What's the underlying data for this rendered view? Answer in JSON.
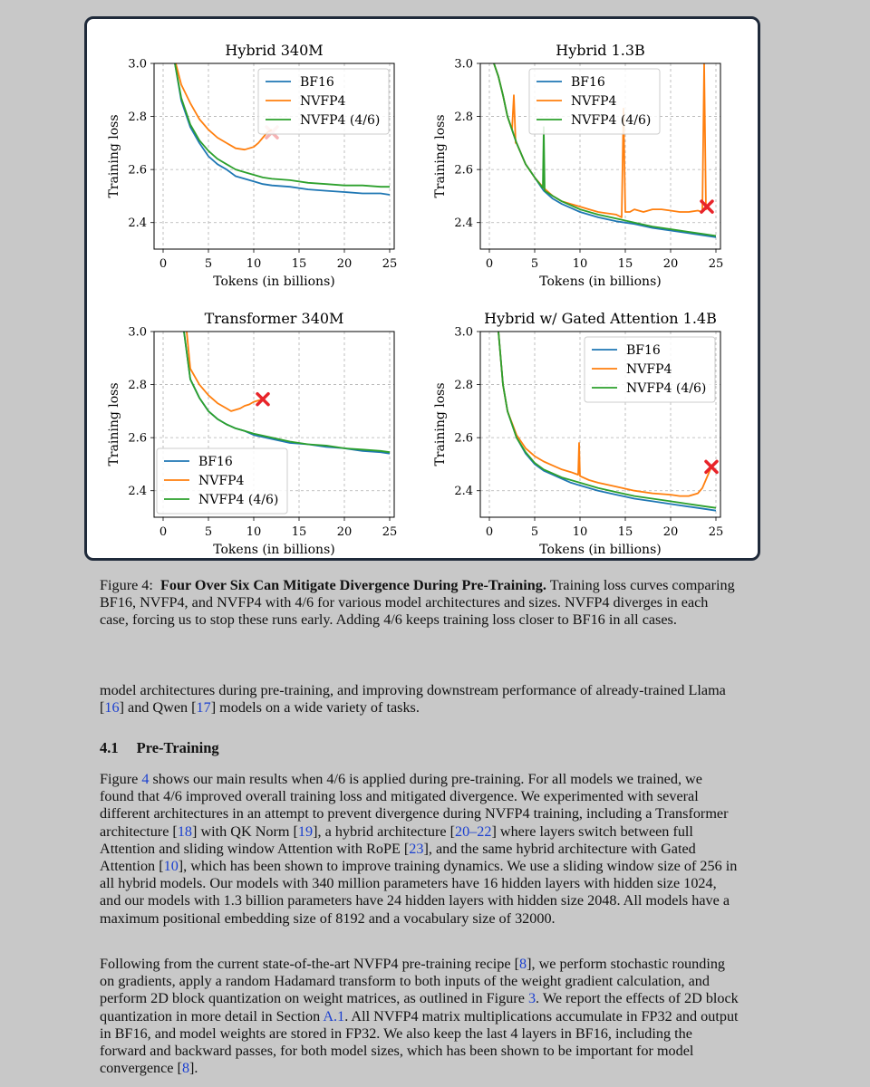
{
  "chart_data": [
    {
      "type": "line",
      "title": "Hybrid 340M",
      "xlabel": "Tokens (in billions)",
      "ylabel": "Training loss",
      "xlim": [
        -1,
        25.5
      ],
      "ylim": [
        2.3,
        3.0
      ],
      "xticks": [
        0,
        5,
        10,
        15,
        20,
        25
      ],
      "yticks": [
        2.4,
        2.6,
        2.8,
        3.0
      ],
      "grid": true,
      "legend": "top-right",
      "divergence_marker": {
        "x": 12.0,
        "y": 2.74,
        "faded": true
      },
      "series": [
        {
          "name": "BF16",
          "color": "#1f77b4",
          "x": [
            1.3,
            2,
            3,
            4,
            5,
            6,
            7,
            8,
            9,
            10,
            11,
            12,
            14,
            16,
            18,
            20,
            22,
            24,
            25
          ],
          "y": [
            3.0,
            2.86,
            2.76,
            2.7,
            2.65,
            2.62,
            2.6,
            2.575,
            2.565,
            2.555,
            2.545,
            2.54,
            2.535,
            2.525,
            2.52,
            2.515,
            2.51,
            2.51,
            2.505
          ]
        },
        {
          "name": "NVFP4",
          "color": "#ff7f0e",
          "x": [
            1.4,
            2,
            3,
            4,
            5,
            6,
            7,
            8,
            9,
            9.5,
            10,
            10.5,
            11,
            11.5,
            12
          ],
          "y": [
            3.0,
            2.92,
            2.85,
            2.79,
            2.75,
            2.72,
            2.7,
            2.68,
            2.675,
            2.68,
            2.685,
            2.7,
            2.72,
            2.74,
            2.75
          ]
        },
        {
          "name": "NVFP4 (4/6)",
          "color": "#2ca02c",
          "x": [
            1.3,
            2,
            3,
            4,
            5,
            6,
            7,
            8,
            9,
            10,
            11,
            12,
            14,
            16,
            18,
            20,
            22,
            24,
            25
          ],
          "y": [
            3.0,
            2.87,
            2.77,
            2.71,
            2.67,
            2.64,
            2.62,
            2.6,
            2.59,
            2.58,
            2.57,
            2.565,
            2.56,
            2.55,
            2.545,
            2.54,
            2.54,
            2.535,
            2.535
          ]
        }
      ]
    },
    {
      "type": "line",
      "title": "Hybrid 1.3B",
      "xlabel": "Tokens (in billions)",
      "ylabel": "Training loss",
      "xlim": [
        -1,
        25.5
      ],
      "ylim": [
        2.3,
        3.0
      ],
      "xticks": [
        0,
        5,
        10,
        15,
        20,
        25
      ],
      "yticks": [
        2.4,
        2.6,
        2.8,
        3.0
      ],
      "grid": true,
      "legend": "top-left",
      "divergence_marker": {
        "x": 24.0,
        "y": 2.46,
        "faded": false
      },
      "series": [
        {
          "name": "BF16",
          "color": "#1f77b4",
          "x": [
            0.5,
            1,
            1.5,
            2,
            3,
            4,
            5,
            6,
            7,
            8,
            9,
            10,
            12,
            14,
            16,
            18,
            20,
            22,
            24,
            25
          ],
          "y": [
            3.0,
            2.95,
            2.88,
            2.8,
            2.7,
            2.62,
            2.57,
            2.52,
            2.49,
            2.47,
            2.455,
            2.44,
            2.42,
            2.405,
            2.395,
            2.38,
            2.37,
            2.36,
            2.35,
            2.345
          ]
        },
        {
          "name": "NVFP4",
          "color": "#ff7f0e",
          "x": [
            0.5,
            1,
            1.5,
            2,
            2.5,
            2.7,
            2.9,
            3,
            4,
            5,
            6,
            7,
            8,
            9,
            10,
            11,
            12,
            13,
            14,
            14.6,
            14.8,
            15,
            15.5,
            16,
            17,
            18,
            19,
            20,
            21,
            22,
            23,
            23.5,
            23.7,
            23.9,
            24.2
          ],
          "y": [
            3.0,
            2.95,
            2.88,
            2.8,
            2.75,
            2.88,
            2.7,
            2.7,
            2.62,
            2.57,
            2.53,
            2.5,
            2.48,
            2.47,
            2.46,
            2.45,
            2.44,
            2.435,
            2.43,
            2.42,
            2.83,
            2.44,
            2.44,
            2.45,
            2.44,
            2.45,
            2.45,
            2.445,
            2.44,
            2.44,
            2.445,
            2.44,
            3.0,
            2.45,
            2.46
          ]
        },
        {
          "name": "NVFP4 (4/6)",
          "color": "#2ca02c",
          "x": [
            0.5,
            1,
            1.5,
            2,
            3,
            4,
            5,
            5.9,
            6.0,
            6.1,
            7,
            8,
            9,
            10,
            12,
            14,
            16,
            18,
            20,
            22,
            24,
            25
          ],
          "y": [
            3.0,
            2.95,
            2.88,
            2.8,
            2.7,
            2.62,
            2.57,
            2.53,
            2.76,
            2.52,
            2.5,
            2.48,
            2.465,
            2.45,
            2.43,
            2.415,
            2.4,
            2.385,
            2.375,
            2.365,
            2.355,
            2.35
          ]
        }
      ]
    },
    {
      "type": "line",
      "title": "Transformer 340M",
      "xlabel": "Tokens (in billions)",
      "ylabel": "Training loss",
      "xlim": [
        -1,
        25.5
      ],
      "ylim": [
        2.3,
        3.0
      ],
      "xticks": [
        0,
        5,
        10,
        15,
        20,
        25
      ],
      "yticks": [
        2.4,
        2.6,
        2.8,
        3.0
      ],
      "grid": true,
      "legend": "bottom-left",
      "divergence_marker": {
        "x": 11.0,
        "y": 2.745,
        "faded": false
      },
      "series": [
        {
          "name": "BF16",
          "color": "#1f77b4",
          "x": [
            2.3,
            3,
            4,
            5,
            6,
            7,
            8,
            9,
            10,
            12,
            14,
            16,
            18,
            20,
            22,
            24,
            25
          ],
          "y": [
            3.0,
            2.82,
            2.75,
            2.7,
            2.67,
            2.65,
            2.635,
            2.625,
            2.61,
            2.595,
            2.58,
            2.575,
            2.565,
            2.56,
            2.55,
            2.545,
            2.54
          ]
        },
        {
          "name": "NVFP4",
          "color": "#ff7f0e",
          "x": [
            2.6,
            3,
            4,
            5,
            6,
            7,
            7.5,
            8,
            8.5,
            9,
            9.5,
            10,
            10.5,
            11
          ],
          "y": [
            3.0,
            2.86,
            2.8,
            2.76,
            2.73,
            2.71,
            2.7,
            2.705,
            2.71,
            2.72,
            2.725,
            2.735,
            2.74,
            2.745
          ]
        },
        {
          "name": "NVFP4 (4/6)",
          "color": "#2ca02c",
          "x": [
            2.3,
            3,
            4,
            5,
            6,
            7,
            8,
            9,
            10,
            12,
            14,
            16,
            18,
            20,
            22,
            24,
            25
          ],
          "y": [
            3.0,
            2.82,
            2.75,
            2.7,
            2.67,
            2.65,
            2.635,
            2.625,
            2.615,
            2.6,
            2.585,
            2.575,
            2.57,
            2.56,
            2.555,
            2.55,
            2.545
          ]
        }
      ]
    },
    {
      "type": "line",
      "title": "Hybrid w/ Gated Attention 1.4B",
      "xlabel": "Tokens (in billions)",
      "ylabel": "Training loss",
      "xlim": [
        -1,
        25.5
      ],
      "ylim": [
        2.3,
        3.0
      ],
      "xticks": [
        0,
        5,
        10,
        15,
        20,
        25
      ],
      "yticks": [
        2.4,
        2.6,
        2.8,
        3.0
      ],
      "grid": true,
      "legend": "top-right",
      "divergence_marker": {
        "x": 24.5,
        "y": 2.49,
        "faded": false
      },
      "series": [
        {
          "name": "BF16",
          "color": "#1f77b4",
          "x": [
            1,
            1.5,
            2,
            3,
            4,
            5,
            6,
            7,
            8,
            9,
            10,
            12,
            14,
            16,
            18,
            20,
            22,
            24,
            25
          ],
          "y": [
            3.0,
            2.8,
            2.7,
            2.6,
            2.54,
            2.5,
            2.475,
            2.46,
            2.445,
            2.43,
            2.42,
            2.4,
            2.385,
            2.37,
            2.36,
            2.35,
            2.34,
            2.33,
            2.325
          ]
        },
        {
          "name": "NVFP4",
          "color": "#ff7f0e",
          "x": [
            1,
            1.5,
            2,
            3,
            4,
            5,
            6,
            7,
            8,
            9,
            9.8,
            9.9,
            10,
            11,
            12,
            14,
            16,
            18,
            20,
            21,
            22,
            22.5,
            23,
            23.5,
            24,
            24.5
          ],
          "y": [
            3.0,
            2.8,
            2.7,
            2.61,
            2.56,
            2.53,
            2.51,
            2.495,
            2.48,
            2.47,
            2.46,
            2.58,
            2.455,
            2.44,
            2.43,
            2.415,
            2.4,
            2.39,
            2.385,
            2.38,
            2.38,
            2.385,
            2.39,
            2.41,
            2.45,
            2.49
          ]
        },
        {
          "name": "NVFP4 (4/6)",
          "color": "#2ca02c",
          "x": [
            1,
            1.5,
            2,
            3,
            4,
            5,
            6,
            7,
            8,
            9,
            10,
            12,
            14,
            16,
            18,
            20,
            22,
            24,
            25
          ],
          "y": [
            3.0,
            2.8,
            2.7,
            2.6,
            2.545,
            2.505,
            2.48,
            2.465,
            2.45,
            2.44,
            2.43,
            2.41,
            2.395,
            2.38,
            2.37,
            2.36,
            2.35,
            2.34,
            2.335
          ]
        }
      ]
    }
  ],
  "caption": {
    "label": "Figure 4:",
    "title": "Four Over Six Can Mitigate Divergence During Pre-Training.",
    "body": "Training loss curves comparing BF16, NVFP4, and NVFP4 with 4/6 for various model architectures and sizes. NVFP4 diverges in each case, forcing us to stop these runs early. Adding 4/6 keeps training loss closer to BF16 in all cases."
  },
  "intro_paragraph": {
    "t1": "model architectures during pre-training, and improving downstream performance of already-trained Llama [",
    "r1": "16",
    "t2": "] and Qwen [",
    "r2": "17",
    "t3": "] models on a wide variety of tasks."
  },
  "section": {
    "number": "4.1",
    "title": "Pre-Training"
  },
  "paragraph1": {
    "t1": "Figure ",
    "r1": "4",
    "t2": " shows our main results when 4/6 is applied during pre-training. For all models we trained, we found that 4/6 improved overall training loss and mitigated divergence. We experimented with several different architectures in an attempt to prevent divergence during NVFP4 training, including a Transformer architecture [",
    "r2": "18",
    "t3": "] with QK Norm [",
    "r3": "19",
    "t4": "], a hybrid architecture [",
    "r4": "20–22",
    "t5": "] where layers switch between full Attention and sliding window Attention with RoPE [",
    "r5": "23",
    "t6": "], and the same hybrid architecture with Gated Attention [",
    "r6": "10",
    "t7": "], which has been shown to improve training dynamics. We use a sliding window size of 256 in all hybrid models. Our models with 340 million parameters have 16 hidden layers with hidden size 1024, and our models with 1.3 billion parameters have 24 hidden layers with hidden size 2048. All models have a maximum positional embedding size of 8192 and a vocabulary size of 32000."
  },
  "paragraph2": {
    "t1": "Following from the current state-of-the-art NVFP4 pre-training recipe [",
    "r1": "8",
    "t2": "], we perform stochastic rounding on gradients, apply a random Hadamard transform to both inputs of the weight gradient calculation, and perform 2D block quantization on weight matrices, as outlined in Figure ",
    "r2": "3",
    "t3": ". We report the effects of 2D block quantization in more detail in Section ",
    "r3": "A.1",
    "t4": ". All NVFP4 matrix multiplications accumulate in FP32 and output in BF16, and model weights are stored in FP32. We also keep the last 4 layers in BF16, including the forward and backward passes, for both model sizes, which has been shown to be important for model convergence [",
    "r4": "8",
    "t5": "]."
  }
}
